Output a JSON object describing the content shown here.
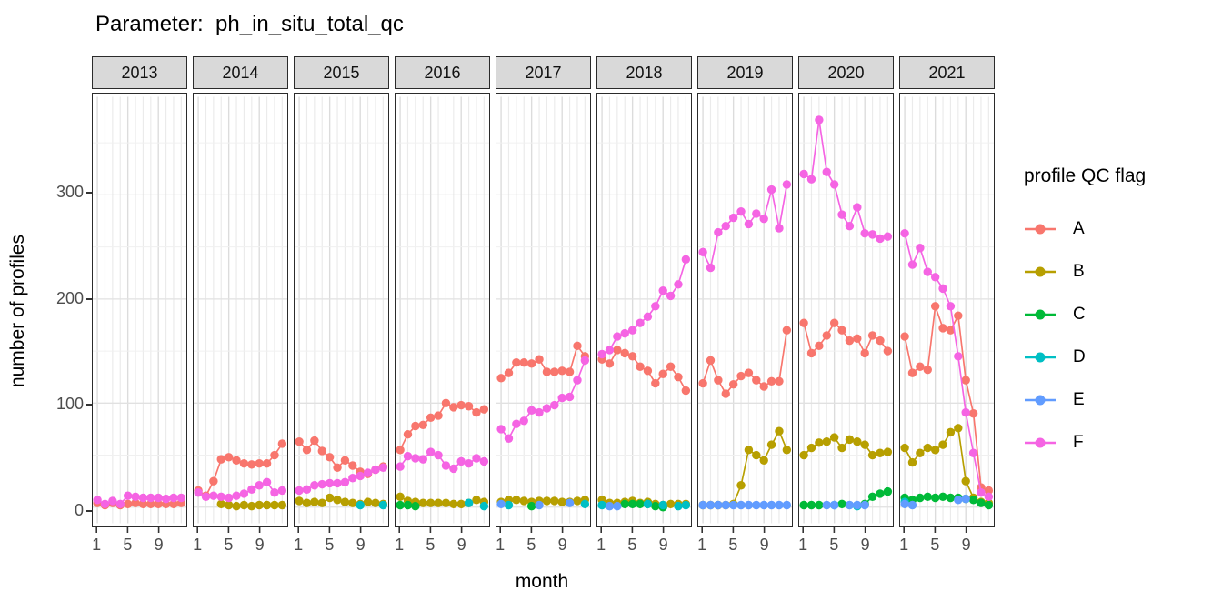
{
  "title": "Parameter:  ph_in_situ_total_qc",
  "x_axis": {
    "label": "month",
    "tick_labels": [
      "1",
      "5",
      "9"
    ],
    "tick_months": [
      1,
      5,
      9
    ]
  },
  "y_axis": {
    "label": "number of profiles",
    "ticks": [
      0,
      100,
      200,
      300
    ]
  },
  "legend": {
    "title": "profile QC flag",
    "position": "right",
    "entries": [
      {
        "label": "A",
        "color": "#F8766D"
      },
      {
        "label": "B",
        "color": "#B79F00"
      },
      {
        "label": "C",
        "color": "#00BA38"
      },
      {
        "label": "D",
        "color": "#00BFC4"
      },
      {
        "label": "E",
        "color": "#619CFF"
      },
      {
        "label": "F",
        "color": "#F564E3"
      }
    ]
  },
  "chart_data": {
    "type": "line",
    "title": "Parameter:  ph_in_situ_total_qc",
    "xlabel": "month",
    "ylabel": "number of profiles",
    "x": [
      1,
      2,
      3,
      4,
      5,
      6,
      7,
      8,
      9,
      10,
      11,
      12
    ],
    "ylim": [
      0,
      390
    ],
    "grid": true,
    "legend_position": "right",
    "facets": [
      {
        "year": "2013",
        "series": [
          {
            "flag": "A",
            "values": [
              4,
              2,
              4,
              2,
              3,
              4,
              3,
              3,
              3,
              3,
              3,
              4
            ]
          },
          {
            "flag": "F",
            "values": [
              7,
              3,
              6,
              3,
              11,
              10,
              9,
              9,
              9,
              8,
              9,
              9
            ]
          }
        ]
      },
      {
        "year": "2014",
        "series": [
          {
            "flag": "A",
            "values": [
              16,
              11,
              25,
              46,
              48,
              45,
              42,
              41,
              42,
              42,
              50,
              61
            ]
          },
          {
            "flag": "B",
            "values": [
              null,
              null,
              null,
              3,
              2,
              1,
              2,
              1,
              2,
              2,
              2,
              2
            ]
          },
          {
            "flag": "F",
            "values": [
              14,
              10,
              11,
              10,
              9,
              11,
              13,
              17,
              21,
              24,
              14,
              16
            ]
          }
        ]
      },
      {
        "year": "2015",
        "series": [
          {
            "flag": "A",
            "values": [
              63,
              55,
              64,
              54,
              48,
              38,
              45,
              40,
              34,
              32,
              36,
              39
            ]
          },
          {
            "flag": "B",
            "values": [
              6,
              4,
              5,
              4,
              9,
              7,
              5,
              4,
              3,
              5,
              4,
              3
            ]
          },
          {
            "flag": "D",
            "values": [
              null,
              null,
              null,
              null,
              null,
              null,
              null,
              null,
              2,
              null,
              null,
              2
            ]
          },
          {
            "flag": "F",
            "values": [
              16,
              17,
              21,
              22,
              23,
              23,
              24,
              28,
              30,
              33,
              36,
              38
            ]
          }
        ]
      },
      {
        "year": "2016",
        "series": [
          {
            "flag": "A",
            "values": [
              55,
              70,
              78,
              79,
              86,
              88,
              100,
              96,
              98,
              97,
              91,
              94
            ]
          },
          {
            "flag": "B",
            "values": [
              10,
              6,
              5,
              4,
              4,
              4,
              4,
              3,
              3,
              4,
              7,
              5
            ]
          },
          {
            "flag": "C",
            "values": [
              2,
              2,
              1,
              null,
              null,
              null,
              null,
              null,
              null,
              null,
              null,
              null
            ]
          },
          {
            "flag": "D",
            "values": [
              null,
              null,
              null,
              null,
              null,
              null,
              null,
              null,
              null,
              4,
              null,
              1
            ]
          },
          {
            "flag": "F",
            "values": [
              39,
              49,
              47,
              46,
              53,
              50,
              40,
              37,
              44,
              42,
              47,
              44
            ]
          }
        ]
      },
      {
        "year": "2017",
        "series": [
          {
            "flag": "A",
            "values": [
              124,
              129,
              139,
              139,
              138,
              142,
              130,
              130,
              131,
              130,
              155,
              145
            ]
          },
          {
            "flag": "B",
            "values": [
              5,
              7,
              7,
              6,
              5,
              6,
              6,
              6,
              5,
              5,
              6,
              7
            ]
          },
          {
            "flag": "C",
            "values": [
              null,
              null,
              null,
              null,
              1,
              null,
              null,
              null,
              null,
              null,
              null,
              null
            ]
          },
          {
            "flag": "D",
            "values": [
              null,
              2,
              null,
              null,
              null,
              null,
              null,
              null,
              null,
              null,
              null,
              3
            ]
          },
          {
            "flag": "E",
            "values": [
              3,
              null,
              null,
              null,
              null,
              2,
              null,
              null,
              null,
              4,
              null,
              null
            ]
          },
          {
            "flag": "F",
            "values": [
              75,
              66,
              80,
              83,
              93,
              91,
              95,
              98,
              105,
              106,
              122,
              141
            ]
          }
        ]
      },
      {
        "year": "2018",
        "series": [
          {
            "flag": "A",
            "values": [
              142,
              138,
              151,
              148,
              145,
              135,
              131,
              119,
              128,
              135,
              125,
              112
            ]
          },
          {
            "flag": "B",
            "values": [
              7,
              4,
              4,
              5,
              6,
              4,
              5,
              3,
              2,
              3,
              3,
              3
            ]
          },
          {
            "flag": "C",
            "values": [
              null,
              null,
              null,
              3,
              3,
              3,
              3,
              1,
              0,
              null,
              null,
              null
            ]
          },
          {
            "flag": "D",
            "values": [
              2,
              null,
              null,
              null,
              null,
              null,
              3,
              null,
              2,
              null,
              1,
              2
            ]
          },
          {
            "flag": "E",
            "values": [
              null,
              1,
              1,
              null,
              null,
              null,
              null,
              null,
              null,
              null,
              null,
              null
            ]
          },
          {
            "flag": "F",
            "values": [
              147,
              151,
              164,
              167,
              170,
              177,
              183,
              193,
              208,
              203,
              214,
              238
            ]
          }
        ]
      },
      {
        "year": "2019",
        "series": [
          {
            "flag": "A",
            "values": [
              119,
              141,
              122,
              109,
              118,
              126,
              129,
              122,
              116,
              121,
              121,
              170
            ]
          },
          {
            "flag": "B",
            "values": [
              2,
              2,
              2,
              2,
              3,
              21,
              55,
              50,
              45,
              60,
              73,
              55
            ]
          },
          {
            "flag": "E",
            "values": [
              2,
              2,
              2,
              2,
              2,
              2,
              2,
              2,
              2,
              2,
              2,
              2
            ]
          },
          {
            "flag": "F",
            "values": [
              245,
              230,
              264,
              270,
              278,
              284,
              272,
              282,
              277,
              305,
              268,
              310
            ]
          }
        ]
      },
      {
        "year": "2020",
        "series": [
          {
            "flag": "A",
            "values": [
              177,
              148,
              155,
              165,
              177,
              170,
              160,
              162,
              148,
              165,
              160,
              150
            ]
          },
          {
            "flag": "B",
            "values": [
              50,
              57,
              62,
              63,
              67,
              57,
              65,
              63,
              60,
              50,
              52,
              53
            ]
          },
          {
            "flag": "C",
            "values": [
              2,
              2,
              2,
              null,
              null,
              3,
              null,
              null,
              3,
              10,
              13,
              15
            ]
          },
          {
            "flag": "D",
            "values": [
              null,
              null,
              null,
              null,
              2,
              null,
              null,
              1,
              null,
              null,
              null,
              null
            ]
          },
          {
            "flag": "E",
            "values": [
              null,
              null,
              null,
              2,
              2,
              null,
              2,
              2,
              2,
              null,
              null,
              null
            ]
          },
          {
            "flag": "F",
            "values": [
              320,
              315,
              372,
              322,
              310,
              281,
              270,
              288,
              263,
              262,
              258,
              260
            ]
          }
        ]
      },
      {
        "year": "2021",
        "series": [
          {
            "flag": "A",
            "values": [
              164,
              129,
              135,
              132,
              193,
              172,
              170,
              184,
              122,
              90,
              19,
              16
            ]
          },
          {
            "flag": "B",
            "values": [
              57,
              43,
              52,
              57,
              55,
              60,
              72,
              76,
              25,
              9,
              5,
              4
            ]
          },
          {
            "flag": "C",
            "values": [
              9,
              7,
              9,
              10,
              9,
              10,
              9,
              9,
              8,
              7,
              4,
              2
            ]
          },
          {
            "flag": "D",
            "values": [
              5,
              null,
              null,
              null,
              null,
              null,
              null,
              null,
              null,
              null,
              null,
              null
            ]
          },
          {
            "flag": "E",
            "values": [
              3,
              2,
              null,
              null,
              null,
              null,
              null,
              7,
              8,
              null,
              null,
              null
            ]
          },
          {
            "flag": "F",
            "values": [
              263,
              233,
              249,
              226,
              221,
              210,
              193,
              145,
              91,
              52,
              14,
              10
            ]
          }
        ]
      }
    ]
  }
}
